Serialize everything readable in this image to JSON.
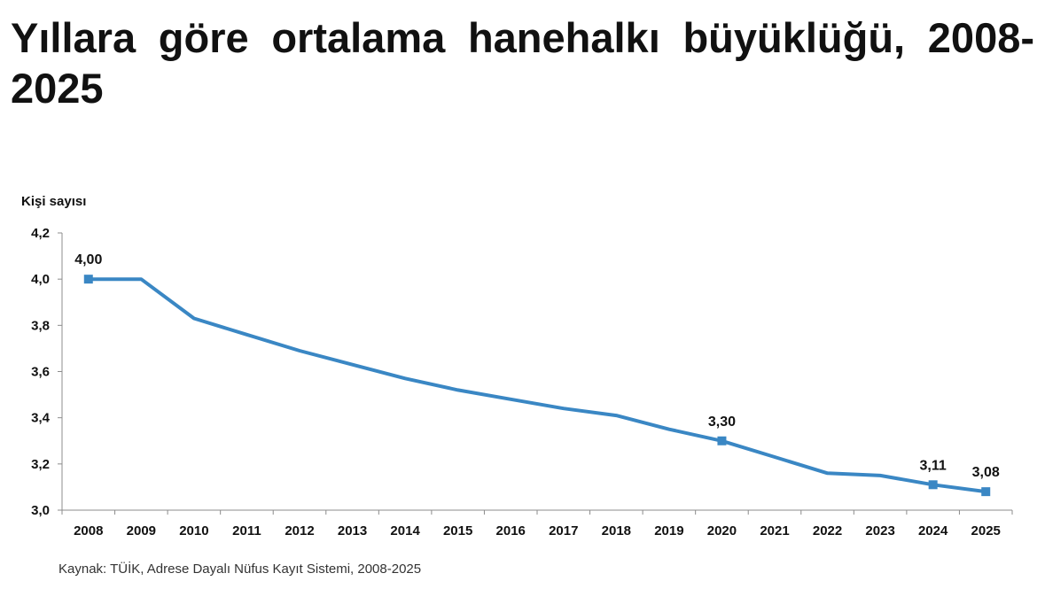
{
  "header": {
    "title": "Yıllara göre ortalama hanehalkı büyüklüğü, 2008-2025"
  },
  "footer": {
    "source": "Kaynak: TÜİK, Adrese Dayalı Nüfus Kayıt Sistemi, 2008-2025"
  },
  "chart_data": {
    "type": "line",
    "title": "Yıllara göre ortalama hanehalkı büyüklüğü, 2008-2025",
    "xlabel": "",
    "ylabel": "Kişi sayısı",
    "ylim": [
      3.0,
      4.2
    ],
    "y_ticks": [
      "3,0",
      "3,2",
      "3,4",
      "3,6",
      "3,8",
      "4,0",
      "4,2"
    ],
    "y_tick_values": [
      3.0,
      3.2,
      3.4,
      3.6,
      3.8,
      4.0,
      4.2
    ],
    "grid": false,
    "legend": "none",
    "line_color": "#3a87c4",
    "categories": [
      "2008",
      "2009",
      "2010",
      "2011",
      "2012",
      "2013",
      "2014",
      "2015",
      "2016",
      "2017",
      "2018",
      "2019",
      "2020",
      "2021",
      "2022",
      "2023",
      "2024",
      "2025"
    ],
    "series": [
      {
        "values": [
          4.0,
          4.0,
          3.83,
          3.76,
          3.69,
          3.63,
          3.57,
          3.52,
          3.48,
          3.44,
          3.41,
          3.35,
          3.3,
          3.23,
          3.16,
          3.15,
          3.11,
          3.08
        ]
      }
    ],
    "data_labels": [
      {
        "category": "2008",
        "value": 4.0,
        "text": "4,00"
      },
      {
        "category": "2020",
        "value": 3.3,
        "text": "3,30"
      },
      {
        "category": "2024",
        "value": 3.11,
        "text": "3,11"
      },
      {
        "category": "2025",
        "value": 3.08,
        "text": "3,08"
      }
    ]
  }
}
